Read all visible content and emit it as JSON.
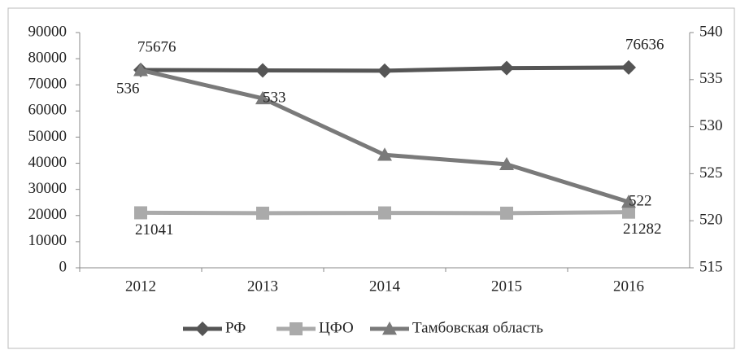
{
  "chart_data": {
    "type": "line",
    "categories": [
      "2012",
      "2013",
      "2014",
      "2015",
      "2016"
    ],
    "series": [
      {
        "name": "РФ",
        "color": "#555555",
        "marker": "diamond",
        "values": [
          75676,
          75500,
          75400,
          76400,
          76636
        ],
        "value_labels": [
          "75676",
          null,
          null,
          null,
          "76636"
        ]
      },
      {
        "name": "ЦФО",
        "color": "#aaaaaa",
        "marker": "square",
        "values": [
          21041,
          20900,
          21000,
          20900,
          21282
        ],
        "value_labels": [
          "21041",
          null,
          null,
          null,
          "21282"
        ]
      },
      {
        "name": "Тамбовская область",
        "color": "#7a7a7a",
        "marker": "triangle",
        "axis": "y2",
        "values": [
          536,
          533,
          527,
          526,
          522
        ],
        "value_labels": [
          "536",
          "533",
          null,
          null,
          "522"
        ]
      }
    ],
    "ylim": [
      0,
      90000
    ],
    "yticks": [
      0,
      10000,
      20000,
      30000,
      40000,
      50000,
      60000,
      70000,
      80000,
      90000
    ],
    "y2lim": [
      515,
      540
    ],
    "y2ticks": [
      515,
      520,
      525,
      530,
      535,
      540
    ],
    "grid": false,
    "legend": "bottom"
  }
}
